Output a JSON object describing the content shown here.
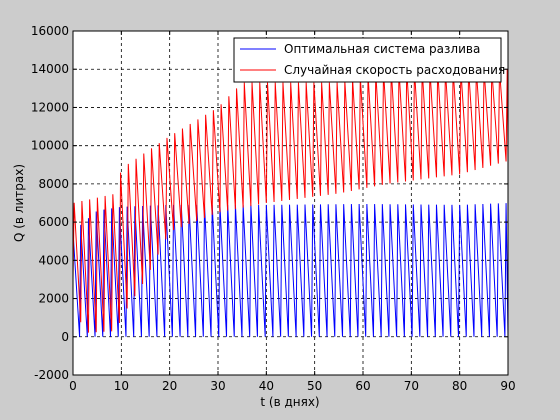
{
  "chart_data": {
    "type": "line",
    "title": "",
    "xlabel": "t (в днях)",
    "ylabel": "Q (в литрах)",
    "xlim": [
      0,
      90
    ],
    "ylim": [
      -2000,
      16000
    ],
    "xticks": [
      0,
      10,
      20,
      30,
      40,
      50,
      60,
      70,
      80,
      90
    ],
    "xtick_labels": [
      "0",
      "10",
      "20",
      "30",
      "40",
      "50",
      "60",
      "70",
      "80",
      "90"
    ],
    "yticks": [
      -2000,
      0,
      2000,
      4000,
      6000,
      8000,
      10000,
      12000,
      14000,
      16000
    ],
    "ytick_labels": [
      "-2000",
      "0",
      "2000",
      "4000",
      "6000",
      "8000",
      "10000",
      "12000",
      "14000",
      "16000"
    ],
    "grid": true,
    "legend_position": "top-right",
    "series": [
      {
        "name": "Оптимальная система разлива",
        "color": "#0000ff",
        "pattern": "sawtooth",
        "period_days": 1.6,
        "minimum": 0,
        "peaks": [
          [
            0,
            5500
          ],
          [
            5,
            6600
          ],
          [
            10,
            6800
          ],
          [
            20,
            6900
          ],
          [
            40,
            6900
          ],
          [
            60,
            6950
          ],
          [
            80,
            6900
          ],
          [
            90,
            7000
          ]
        ],
        "end_value": 0
      },
      {
        "name": "Случайная скорость расходования",
        "color": "#ff0000",
        "pattern": "oscillating",
        "period_days": 1.6,
        "peaks": [
          [
            0,
            7000
          ],
          [
            9,
            7500
          ],
          [
            10,
            8800
          ],
          [
            20,
            10500
          ],
          [
            30,
            12000
          ],
          [
            35,
            13300
          ],
          [
            55,
            13300
          ],
          [
            65,
            14000
          ],
          [
            90,
            14000
          ]
        ],
        "troughs": [
          [
            0,
            3000
          ],
          [
            2,
            200
          ],
          [
            9,
            300
          ],
          [
            10,
            1000
          ],
          [
            15,
            3000
          ],
          [
            20,
            5500
          ],
          [
            30,
            6500
          ],
          [
            40,
            7000
          ],
          [
            55,
            7500
          ],
          [
            65,
            8000
          ],
          [
            80,
            8500
          ],
          [
            90,
            9200
          ]
        ],
        "end_value": 9200
      }
    ]
  }
}
